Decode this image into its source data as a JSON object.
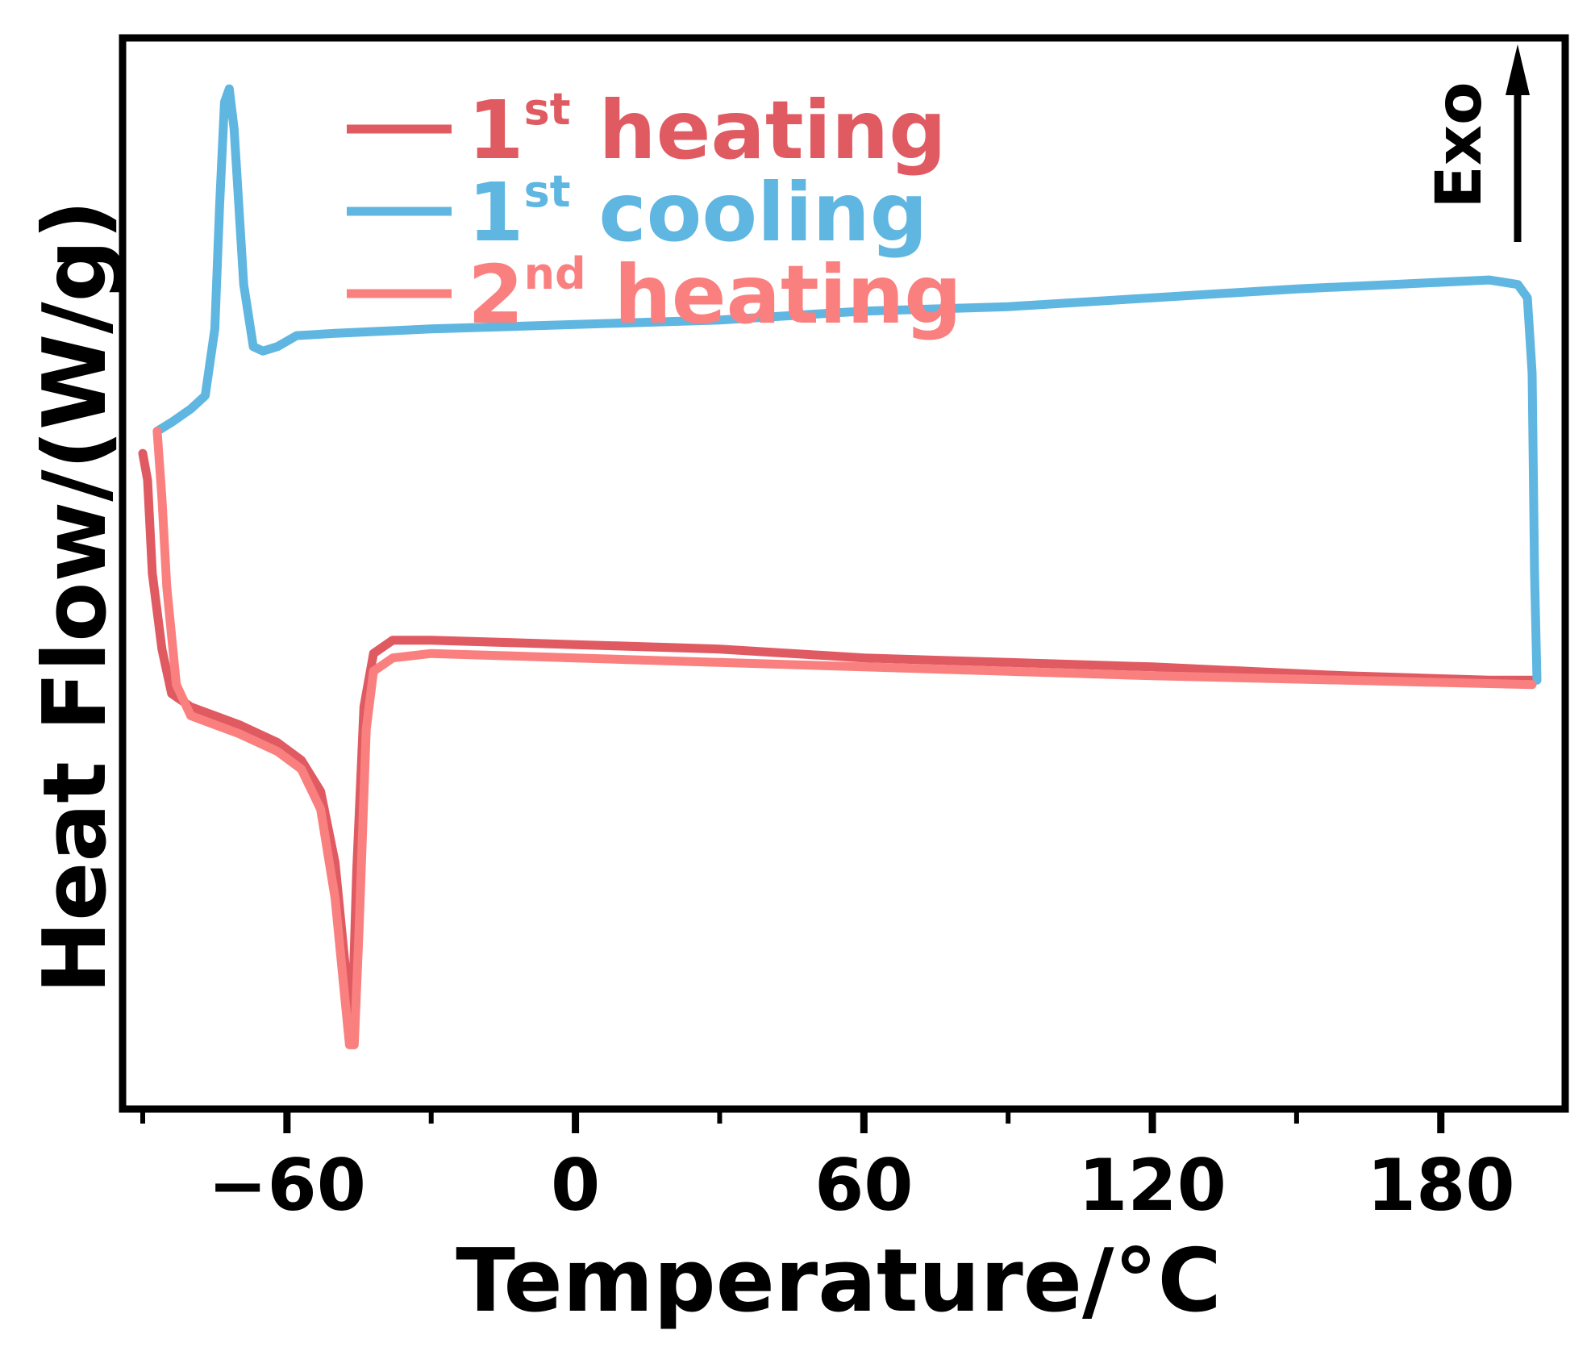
{
  "chart_data": {
    "type": "line",
    "title": "",
    "xlabel": "Temperature/°C",
    "ylabel": "Heat Flow/(W/g)",
    "xlim": [
      -90,
      200
    ],
    "ylim": [
      -1.1,
      1.2
    ],
    "x_ticks": [
      -60,
      0,
      60,
      120,
      180
    ],
    "x_minor_ticks": [
      -90,
      -30,
      30,
      90,
      150
    ],
    "y_ticks_labeled": false,
    "exo_label": "Exo",
    "exo_direction": "up",
    "legend_position": "top-left",
    "series": [
      {
        "name": "1st heating",
        "label_main": "1",
        "label_sup": "st",
        "label_rest": " heating",
        "color": "#e05a62",
        "points": [
          [
            -90,
            0.32
          ],
          [
            -89,
            0.26
          ],
          [
            -88,
            0.05
          ],
          [
            -86,
            -0.12
          ],
          [
            -84,
            -0.22
          ],
          [
            -80,
            -0.25
          ],
          [
            -70,
            -0.29
          ],
          [
            -62,
            -0.33
          ],
          [
            -57,
            -0.37
          ],
          [
            -53,
            -0.44
          ],
          [
            -50,
            -0.6
          ],
          [
            -48,
            -0.82
          ],
          [
            -46.5,
            -0.98
          ],
          [
            -45.5,
            -0.62
          ],
          [
            -44,
            -0.25
          ],
          [
            -42,
            -0.13
          ],
          [
            -38,
            -0.1
          ],
          [
            -30,
            -0.1
          ],
          [
            0,
            -0.11
          ],
          [
            30,
            -0.12
          ],
          [
            60,
            -0.14
          ],
          [
            90,
            -0.15
          ],
          [
            120,
            -0.16
          ],
          [
            160,
            -0.18
          ],
          [
            190,
            -0.19
          ],
          [
            199,
            -0.19
          ]
        ]
      },
      {
        "name": "1st cooling",
        "label_main": "1",
        "label_sup": "st",
        "label_rest": " cooling",
        "color": "#5fb6e0",
        "points": [
          [
            200,
            -0.19
          ],
          [
            199.5,
            0.05
          ],
          [
            199,
            0.5
          ],
          [
            198,
            0.67
          ],
          [
            196,
            0.7
          ],
          [
            190,
            0.71
          ],
          [
            170,
            0.7
          ],
          [
            150,
            0.69
          ],
          [
            120,
            0.67
          ],
          [
            90,
            0.65
          ],
          [
            60,
            0.64
          ],
          [
            30,
            0.62
          ],
          [
            0,
            0.61
          ],
          [
            -30,
            0.6
          ],
          [
            -50,
            0.59
          ],
          [
            -58,
            0.585
          ],
          [
            -62,
            0.56
          ],
          [
            -65,
            0.55
          ],
          [
            -67,
            0.56
          ],
          [
            -69,
            0.7
          ],
          [
            -71,
            1.05
          ],
          [
            -72,
            1.14
          ],
          [
            -73,
            1.11
          ],
          [
            -74,
            0.88
          ],
          [
            -75,
            0.6
          ],
          [
            -77,
            0.45
          ],
          [
            -80,
            0.42
          ],
          [
            -84,
            0.39
          ],
          [
            -87,
            0.37
          ]
        ]
      },
      {
        "name": "2nd heating",
        "label_main": "2",
        "label_sup": "nd",
        "label_rest": " heating",
        "color": "#fa8080",
        "points": [
          [
            -87,
            0.37
          ],
          [
            -86,
            0.22
          ],
          [
            -85,
            0.02
          ],
          [
            -83,
            -0.2
          ],
          [
            -80,
            -0.27
          ],
          [
            -70,
            -0.31
          ],
          [
            -62,
            -0.35
          ],
          [
            -57,
            -0.39
          ],
          [
            -53,
            -0.48
          ],
          [
            -50,
            -0.68
          ],
          [
            -48,
            -0.9
          ],
          [
            -47,
            -1.01
          ],
          [
            -46,
            -1.01
          ],
          [
            -45,
            -0.75
          ],
          [
            -43.5,
            -0.3
          ],
          [
            -42,
            -0.17
          ],
          [
            -38,
            -0.14
          ],
          [
            -30,
            -0.13
          ],
          [
            0,
            -0.14
          ],
          [
            30,
            -0.15
          ],
          [
            60,
            -0.16
          ],
          [
            90,
            -0.17
          ],
          [
            120,
            -0.18
          ],
          [
            160,
            -0.19
          ],
          [
            199,
            -0.2
          ]
        ]
      }
    ]
  }
}
